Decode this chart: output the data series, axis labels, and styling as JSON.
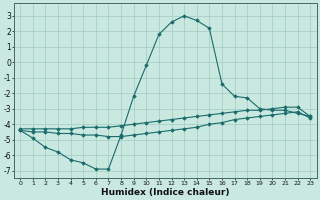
{
  "xlabel": "Humidex (Indice chaleur)",
  "background_color": "#c8e8e0",
  "grid_color": "#a8d0c8",
  "line_color": "#1a6b6b",
  "xlim": [
    -0.5,
    23.5
  ],
  "ylim": [
    -7.5,
    3.8
  ],
  "xticks": [
    0,
    1,
    2,
    3,
    4,
    5,
    6,
    7,
    8,
    9,
    10,
    11,
    12,
    13,
    14,
    15,
    16,
    17,
    18,
    19,
    20,
    21,
    22,
    23
  ],
  "yticks": [
    -7,
    -6,
    -5,
    -4,
    -3,
    -2,
    -1,
    0,
    1,
    2,
    3
  ],
  "line1_x": [
    0,
    1,
    2,
    3,
    4,
    5,
    6,
    7,
    8,
    9,
    10,
    11,
    12,
    13,
    14,
    15,
    16,
    17,
    18,
    19,
    20,
    21,
    22,
    23
  ],
  "line1_y": [
    -4.4,
    -4.9,
    -5.5,
    -5.8,
    -6.3,
    -6.5,
    -6.9,
    -6.9,
    -4.7,
    -2.2,
    -0.2,
    1.8,
    2.6,
    3.0,
    2.7,
    2.2,
    -1.4,
    -2.2,
    -2.3,
    -3.0,
    -3.1,
    -3.1,
    -3.3,
    -3.5
  ],
  "line2_x": [
    0,
    1,
    2,
    3,
    4,
    5,
    6,
    7,
    8,
    9,
    10,
    11,
    12,
    13,
    14,
    15,
    16,
    17,
    18,
    19,
    20,
    21,
    22,
    23
  ],
  "line2_y": [
    -4.3,
    -4.3,
    -4.3,
    -4.3,
    -4.3,
    -4.2,
    -4.2,
    -4.2,
    -4.1,
    -4.0,
    -3.9,
    -3.8,
    -3.7,
    -3.6,
    -3.5,
    -3.4,
    -3.3,
    -3.2,
    -3.1,
    -3.1,
    -3.0,
    -2.9,
    -2.9,
    -3.5
  ],
  "line3_x": [
    0,
    1,
    2,
    3,
    4,
    5,
    6,
    7,
    8,
    9,
    10,
    11,
    12,
    13,
    14,
    15,
    16,
    17,
    18,
    19,
    20,
    21,
    22,
    23
  ],
  "line3_y": [
    -4.4,
    -4.5,
    -4.5,
    -4.6,
    -4.6,
    -4.7,
    -4.7,
    -4.8,
    -4.8,
    -4.7,
    -4.6,
    -4.5,
    -4.4,
    -4.3,
    -4.2,
    -4.0,
    -3.9,
    -3.7,
    -3.6,
    -3.5,
    -3.4,
    -3.3,
    -3.2,
    -3.6
  ]
}
